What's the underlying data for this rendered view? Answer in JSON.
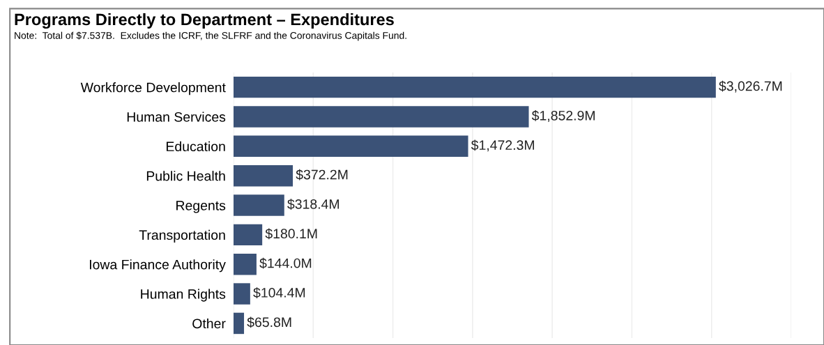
{
  "chart_data": {
    "type": "bar",
    "orientation": "horizontal",
    "title": "Programs Directly to Department – Expenditures",
    "subtitle": "Note:  Total of $7.537B.  Excludes the ICRF, the SLFRF and the Coronavirus Capitals Fund.",
    "categories": [
      "Workforce Development",
      "Human Services",
      "Education",
      "Public Health",
      "Regents",
      "Transportation",
      "Iowa Finance Authority",
      "Human Rights",
      "Other"
    ],
    "values": [
      3026.7,
      1852.9,
      1472.3,
      372.2,
      318.4,
      180.1,
      144.0,
      104.4,
      65.8
    ],
    "value_labels": [
      "$3,026.7M",
      "$1,852.9M",
      "$1,472.3M",
      "$372.2M",
      "$318.4M",
      "$180.1M",
      "$144.0M",
      "$104.4M",
      "$65.8M"
    ],
    "color": "#3b5277",
    "xlim": [
      0,
      3500
    ],
    "xticks": [
      {
        "value": 0,
        "label": null
      },
      {
        "value": 500,
        "label": null
      },
      {
        "value": 1000,
        "label": null
      },
      {
        "value": 1500,
        "label": null
      },
      {
        "value": 2000,
        "label": null
      },
      {
        "value": 2500,
        "label": null
      },
      {
        "value": 3000,
        "label": null
      },
      {
        "value": 3500,
        "label": null
      }
    ],
    "grid": "x",
    "tick_labels": "y",
    "legend": false
  }
}
